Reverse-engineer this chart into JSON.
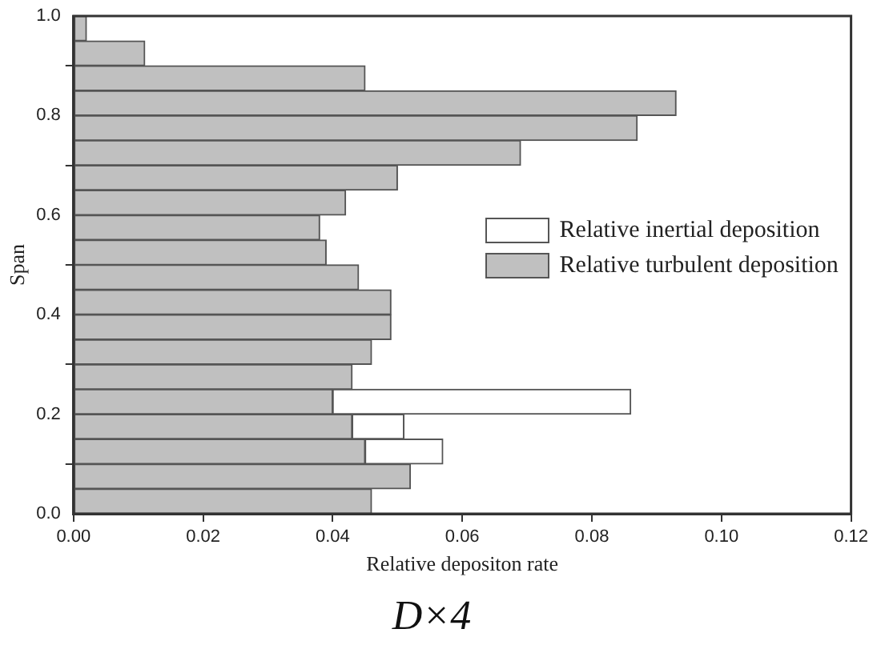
{
  "chart_data": {
    "type": "bar",
    "orientation": "horizontal",
    "stacked": true,
    "title": "D×4",
    "xlabel": "Relative depositon rate",
    "ylabel": "Span",
    "x": [
      0.975,
      0.925,
      0.875,
      0.825,
      0.775,
      0.725,
      0.675,
      0.625,
      0.575,
      0.525,
      0.475,
      0.425,
      0.375,
      0.325,
      0.275,
      0.225,
      0.175,
      0.125,
      0.075,
      0.025
    ],
    "series": [
      {
        "name": "Relative turbulent deposition",
        "color": "#c0c0c0",
        "values": [
          0.002,
          0.011,
          0.045,
          0.093,
          0.087,
          0.069,
          0.05,
          0.042,
          0.038,
          0.039,
          0.044,
          0.049,
          0.049,
          0.046,
          0.043,
          0.04,
          0.043,
          0.045,
          0.052,
          0.046
        ]
      },
      {
        "name": "Relative inertial deposition",
        "color": "#ffffff",
        "values": [
          null,
          null,
          null,
          null,
          null,
          null,
          null,
          null,
          null,
          null,
          null,
          null,
          null,
          null,
          null,
          0.046,
          0.008,
          0.012,
          null,
          null
        ]
      }
    ],
    "xlim": [
      0,
      0.12
    ],
    "xticks": [
      {
        "value": 0,
        "label": "0.00"
      },
      {
        "value": 0.02,
        "label": "0.02"
      },
      {
        "value": 0.04,
        "label": "0.04"
      },
      {
        "value": 0.06,
        "label": "0.06"
      },
      {
        "value": 0.08,
        "label": "0.08"
      },
      {
        "value": 0.1,
        "label": "0.10"
      },
      {
        "value": 0.12,
        "label": "0.12"
      }
    ],
    "ylim": [
      0,
      1
    ],
    "yticks": [
      {
        "value": 0,
        "label": "0.0"
      },
      {
        "value": 0.2,
        "label": "0.2"
      },
      {
        "value": 0.4,
        "label": "0.4"
      },
      {
        "value": 0.6,
        "label": "0.6"
      },
      {
        "value": 0.8,
        "label": "0.8"
      },
      {
        "value": 1,
        "label": "1.0"
      }
    ],
    "grid": false,
    "legend": "right"
  }
}
